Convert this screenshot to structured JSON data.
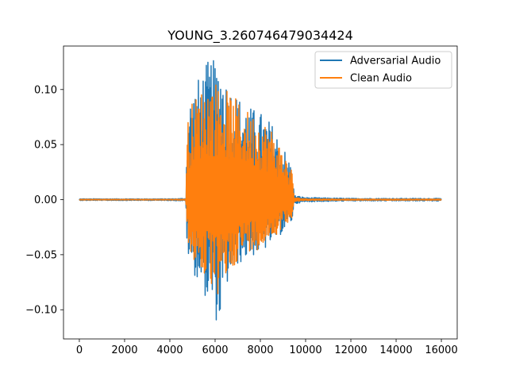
{
  "chart_data": {
    "type": "line",
    "title": "YOUNG_3.260746479034424",
    "xlabel": "",
    "ylabel": "",
    "xlim": [
      -700,
      16700
    ],
    "ylim": [
      -0.1265,
      0.1395
    ],
    "x_ticks": [
      0,
      2000,
      4000,
      6000,
      8000,
      10000,
      12000,
      14000,
      16000
    ],
    "x_tick_labels": [
      "0",
      "2000",
      "4000",
      "6000",
      "8000",
      "10000",
      "12000",
      "14000",
      "16000"
    ],
    "y_ticks": [
      -0.1,
      -0.05,
      0.0,
      0.05,
      0.1
    ],
    "y_tick_labels": [
      "−0.10",
      "−0.05",
      "0.00",
      "0.05",
      "0.10"
    ],
    "grid": false,
    "legend_position": "upper right",
    "series": [
      {
        "name": "Adversarial Audio",
        "color": "#1f77b4",
        "x": [
          0,
          2000,
          4000,
          4700,
          4780,
          5000,
          5500,
          5800,
          6000,
          6200,
          6500,
          7000,
          7500,
          8000,
          8500,
          9000,
          9400,
          9500,
          10000,
          12000,
          14000,
          16000
        ],
        "upper": [
          0.0008,
          0.0008,
          0.0008,
          0.0012,
          0.085,
          0.1,
          0.12,
          0.13,
          0.125,
          0.133,
          0.11,
          0.095,
          0.085,
          0.08,
          0.07,
          0.05,
          0.03,
          0.004,
          0.002,
          0.0012,
          0.0012,
          0.0012
        ],
        "lower": [
          -0.0008,
          -0.0008,
          -0.0008,
          -0.0012,
          -0.055,
          -0.065,
          -0.085,
          -0.1,
          -0.11,
          -0.112,
          -0.08,
          -0.06,
          -0.052,
          -0.05,
          -0.04,
          -0.03,
          -0.02,
          -0.004,
          -0.002,
          -0.0012,
          -0.0012,
          -0.0012
        ]
      },
      {
        "name": "Clean Audio",
        "color": "#ff7f0e",
        "x": [
          0,
          2000,
          4000,
          4700,
          4780,
          5000,
          5500,
          5800,
          6000,
          6200,
          6500,
          7000,
          7500,
          8000,
          8500,
          9000,
          9400,
          9500,
          10000,
          12000,
          14000,
          16000
        ],
        "upper": [
          0.0003,
          0.0003,
          0.0003,
          0.0005,
          0.072,
          0.09,
          0.103,
          0.108,
          0.108,
          0.107,
          0.1,
          0.09,
          0.08,
          0.075,
          0.065,
          0.045,
          0.027,
          0.002,
          0.0008,
          0.0005,
          0.0005,
          0.0005
        ],
        "lower": [
          -0.0003,
          -0.0003,
          -0.0003,
          -0.0005,
          -0.042,
          -0.055,
          -0.07,
          -0.08,
          -0.088,
          -0.09,
          -0.072,
          -0.055,
          -0.047,
          -0.045,
          -0.036,
          -0.026,
          -0.016,
          -0.002,
          -0.0008,
          -0.0005,
          -0.0005,
          -0.0005
        ]
      }
    ]
  }
}
